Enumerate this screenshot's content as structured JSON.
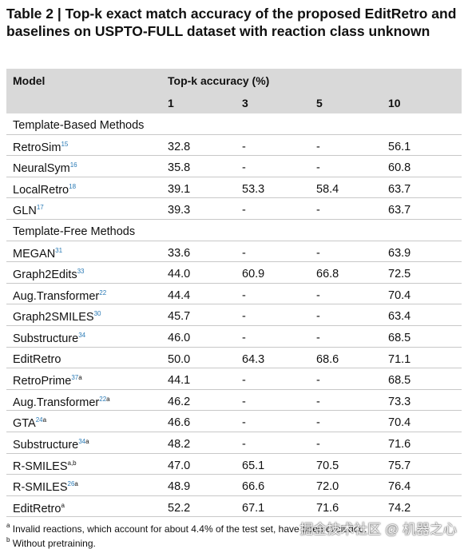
{
  "title": "Table 2 | Top-k exact match accuracy of the proposed EditRetro and baselines on USPTO-FULL dataset with reaction class unknown",
  "table": {
    "model_header": "Model",
    "group_header": "Top-k accuracy (%)",
    "k": [
      "1",
      "3",
      "5",
      "10"
    ],
    "sections": [
      {
        "title": "Template-Based Methods",
        "rows": [
          {
            "model": "RetroSim",
            "ref": "15",
            "values": [
              "32.8",
              "-",
              "-",
              "56.1"
            ]
          },
          {
            "model": "NeuralSym",
            "ref": "16",
            "values": [
              "35.8",
              "-",
              "-",
              "60.8"
            ]
          },
          {
            "model": "LocalRetro",
            "ref": "18",
            "values": [
              "39.1",
              "53.3",
              "58.4",
              "63.7"
            ]
          },
          {
            "model": "GLN",
            "ref": "17",
            "values": [
              "39.3",
              "-",
              "-",
              "63.7"
            ]
          }
        ]
      },
      {
        "title": "Template-Free Methods",
        "rows": [
          {
            "model": "MEGAN",
            "ref": "31",
            "values": [
              "33.6",
              "-",
              "-",
              "63.9"
            ]
          },
          {
            "model": "Graph2Edits",
            "ref": "33",
            "values": [
              "44.0",
              "60.9",
              "66.8",
              "72.5"
            ]
          },
          {
            "model": "Aug.Transformer",
            "ref": "22",
            "values": [
              "44.4",
              "-",
              "-",
              "70.4"
            ]
          },
          {
            "model": "Graph2SMILES",
            "ref": "30",
            "values": [
              "45.7",
              "-",
              "-",
              "63.4"
            ]
          },
          {
            "model": "Substructure",
            "ref": "34",
            "values": [
              "46.0",
              "-",
              "-",
              "68.5"
            ]
          },
          {
            "model": "EditRetro",
            "values": [
              "50.0",
              "64.3",
              "68.6",
              "71.1"
            ]
          },
          {
            "model": "RetroPrime",
            "ref": "37",
            "note": "a",
            "values": [
              "44.1",
              "-",
              "-",
              "68.5"
            ]
          },
          {
            "model": "Aug.Transformer",
            "ref": "22",
            "note": "a",
            "values": [
              "46.2",
              "-",
              "-",
              "73.3"
            ]
          },
          {
            "model": "GTA",
            "ref": "24",
            "note": "a",
            "values": [
              "46.6",
              "-",
              "-",
              "70.4"
            ]
          },
          {
            "model": "Substructure",
            "ref": "34",
            "note": "a",
            "values": [
              "48.2",
              "-",
              "-",
              "71.6"
            ]
          },
          {
            "model": "R-SMILES",
            "note": "a,b",
            "values": [
              "47.0",
              "65.1",
              "70.5",
              "75.7"
            ]
          },
          {
            "model": "R-SMILES",
            "ref": "26",
            "note": "a",
            "values": [
              "48.9",
              "66.6",
              "72.0",
              "76.4"
            ]
          },
          {
            "model": "EditRetro",
            "note": "a",
            "values": [
              "52.2",
              "67.1",
              "71.6",
              "74.2"
            ]
          }
        ]
      }
    ]
  },
  "footnotes": [
    {
      "mark": "a",
      "text": "Invalid reactions, which account for about 4.4% of the test set, have been excluded."
    },
    {
      "mark": "b",
      "text": "Without pretraining."
    }
  ],
  "watermark": "掘金技术社区 @ 机器之心"
}
